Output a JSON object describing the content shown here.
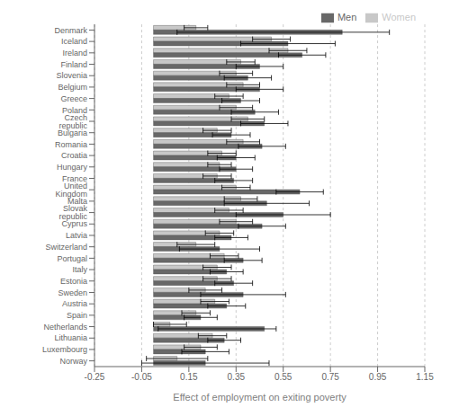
{
  "chart_data": {
    "type": "bar",
    "orientation": "horizontal",
    "xlabel": "Effect of employment on exiting poverty",
    "categories": [
      "Denmark",
      "Iceland",
      "Ireland",
      "Finland",
      "Slovenia",
      "Belgium",
      "Greece",
      "Poland",
      "Czech republic",
      "Bulgaria",
      "Romania",
      "Croatia",
      "Hungary",
      "France",
      "United Kingdom",
      "Malta",
      "Slovak republic",
      "Cyprus",
      "Latvia",
      "Switzerland",
      "Portugal",
      "Italy",
      "Estonia",
      "Sweden",
      "Austria",
      "Spain",
      "Netherlands",
      "Lithuania",
      "Luxembourg",
      "Norway"
    ],
    "series": [
      {
        "name": "Women",
        "color": "#c8c8c8",
        "values": [
          0.18,
          0.5,
          0.57,
          0.37,
          0.35,
          0.38,
          0.32,
          0.35,
          0.4,
          0.27,
          0.38,
          0.29,
          0.28,
          0.27,
          0.35,
          0.37,
          0.32,
          0.35,
          0.28,
          0.18,
          0.3,
          0.27,
          0.27,
          0.22,
          0.26,
          0.18,
          0.07,
          0.25,
          0.2,
          0.1
        ],
        "ci_low": [
          0.13,
          0.42,
          0.49,
          0.31,
          0.28,
          0.31,
          0.26,
          0.28,
          0.33,
          0.21,
          0.31,
          0.23,
          0.23,
          0.21,
          0.29,
          0.3,
          0.26,
          0.28,
          0.22,
          0.1,
          0.24,
          0.21,
          0.21,
          0.15,
          0.2,
          0.12,
          0.0,
          0.19,
          0.13,
          -0.03
        ],
        "ci_high": [
          0.23,
          0.58,
          0.65,
          0.43,
          0.42,
          0.45,
          0.38,
          0.42,
          0.47,
          0.33,
          0.45,
          0.35,
          0.33,
          0.33,
          0.41,
          0.44,
          0.38,
          0.42,
          0.34,
          0.26,
          0.36,
          0.33,
          0.33,
          0.29,
          0.32,
          0.24,
          0.14,
          0.31,
          0.27,
          0.23
        ]
      },
      {
        "name": "Men",
        "color": "#686868",
        "values": [
          0.8,
          0.57,
          0.63,
          0.45,
          0.4,
          0.45,
          0.37,
          0.43,
          0.47,
          0.33,
          0.46,
          0.35,
          0.35,
          0.34,
          0.62,
          0.48,
          0.55,
          0.46,
          0.33,
          0.28,
          0.38,
          0.31,
          0.34,
          0.38,
          0.31,
          0.2,
          0.47,
          0.3,
          0.22,
          0.22
        ],
        "ci_low": [
          0.1,
          0.37,
          0.53,
          0.35,
          0.3,
          0.35,
          0.29,
          0.33,
          0.37,
          0.25,
          0.36,
          0.27,
          0.28,
          0.26,
          0.52,
          0.3,
          0.35,
          0.36,
          0.26,
          0.11,
          0.3,
          0.24,
          0.26,
          0.2,
          0.23,
          0.13,
          0.02,
          0.23,
          0.12,
          -0.05
        ],
        "ci_high": [
          1.0,
          0.77,
          0.73,
          0.55,
          0.5,
          0.55,
          0.45,
          0.53,
          0.57,
          0.41,
          0.56,
          0.43,
          0.42,
          0.42,
          0.72,
          0.66,
          0.75,
          0.56,
          0.4,
          0.45,
          0.46,
          0.38,
          0.42,
          0.56,
          0.39,
          0.27,
          0.52,
          0.37,
          0.32,
          0.49
        ]
      }
    ],
    "xlim": [
      -0.25,
      1.15
    ],
    "xticks": [
      -0.25,
      -0.05,
      0.15,
      0.35,
      0.55,
      0.75,
      0.95,
      1.15
    ],
    "grid": true,
    "legend": "upper right"
  }
}
